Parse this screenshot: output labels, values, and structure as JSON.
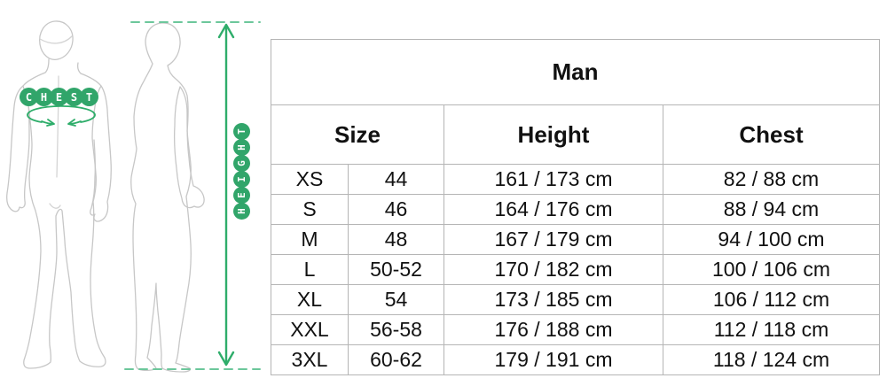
{
  "illustration": {
    "chest_label": "CHEST",
    "height_label": "HEIGHT",
    "badge_color": "#31a56a",
    "arrow_color": "#2ead6a",
    "dash_color": "#6cc79b",
    "figure_outline_color": "#c7c7c7"
  },
  "chart_data": {
    "type": "table",
    "title": "Man",
    "columns": [
      "Size",
      "Height",
      "Chest"
    ],
    "rows": [
      [
        "XS",
        "44",
        "161 / 173 cm",
        "82 / 88 cm"
      ],
      [
        "S",
        "46",
        "164 / 176 cm",
        "88 / 94 cm"
      ],
      [
        "M",
        "48",
        "167 / 179 cm",
        "94 / 100 cm"
      ],
      [
        "L",
        "50-52",
        "170 / 182 cm",
        "100 / 106 cm"
      ],
      [
        "XL",
        "54",
        "173 / 185 cm",
        "106 / 112 cm"
      ],
      [
        "XXL",
        "56-58",
        "176 / 188 cm",
        "112 / 118 cm"
      ],
      [
        "3XL",
        "60-62",
        "179 / 191 cm",
        "118 / 124 cm"
      ]
    ]
  }
}
